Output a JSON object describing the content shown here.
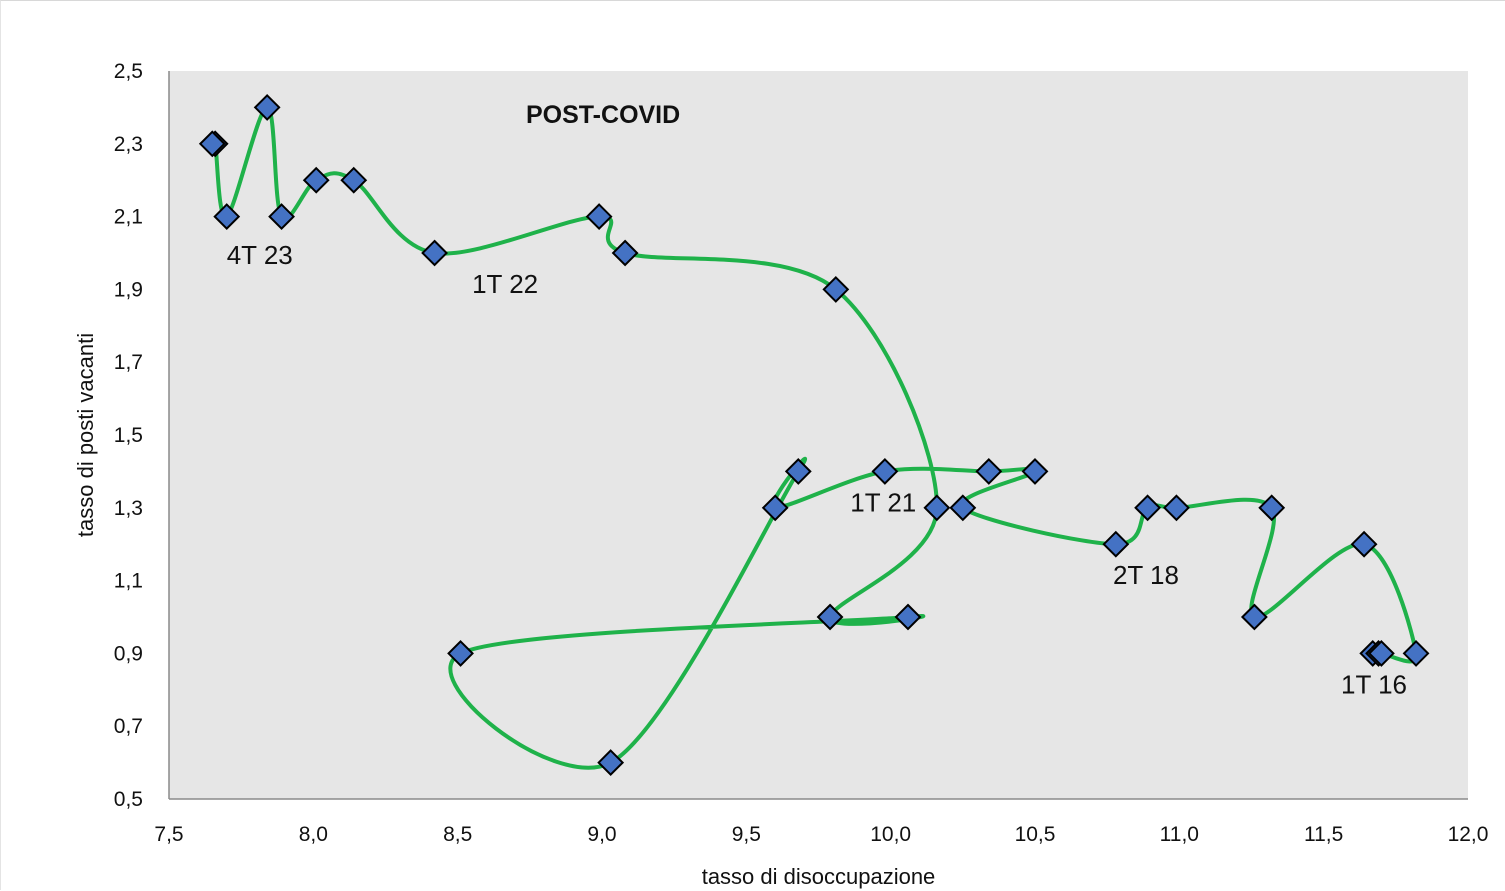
{
  "chart_data": {
    "type": "scatter",
    "title": "POST-COVID",
    "xlabel": "tasso di disoccupazione",
    "ylabel": "tasso di posti vacanti",
    "xlim": [
      7.5,
      12.0
    ],
    "ylim": [
      0.5,
      2.5
    ],
    "xticks": [
      "7,5",
      "8,0",
      "8,5",
      "9,0",
      "9,5",
      "10,0",
      "10,5",
      "11,0",
      "11,5",
      "12,0"
    ],
    "yticks": [
      "0,5",
      "0,7",
      "0,9",
      "1,1",
      "1,3",
      "1,5",
      "1,7",
      "1,9",
      "2,1",
      "2,3",
      "2,5"
    ],
    "grid": false,
    "colors": {
      "plot_background": "#e6e6e6",
      "line": "#1fb24a",
      "marker_fill": "#4472c4",
      "marker_edge": "#000000"
    },
    "series": [
      {
        "points": [
          {
            "x": 11.67,
            "y": 0.9
          },
          {
            "x": 11.69,
            "y": 0.9
          },
          {
            "x": 11.7,
            "y": 0.9
          },
          {
            "x": 11.82,
            "y": 0.9
          },
          {
            "x": 11.64,
            "y": 1.2
          },
          {
            "x": 11.26,
            "y": 1.0
          },
          {
            "x": 11.32,
            "y": 1.3
          },
          {
            "x": 10.99,
            "y": 1.3
          },
          {
            "x": 10.89,
            "y": 1.3
          },
          {
            "x": 10.78,
            "y": 1.2
          },
          {
            "x": 10.25,
            "y": 1.3
          },
          {
            "x": 10.5,
            "y": 1.4
          },
          {
            "x": 10.34,
            "y": 1.4
          },
          {
            "x": 9.98,
            "y": 1.4
          },
          {
            "x": 9.6,
            "y": 1.3
          },
          {
            "x": 9.68,
            "y": 1.4
          },
          {
            "x": 9.03,
            "y": 0.6
          },
          {
            "x": 8.51,
            "y": 0.9
          },
          {
            "x": 10.06,
            "y": 1.0
          },
          {
            "x": 9.79,
            "y": 1.0
          },
          {
            "x": 10.16,
            "y": 1.3
          },
          {
            "x": 9.81,
            "y": 1.9
          },
          {
            "x": 9.08,
            "y": 2.0
          },
          {
            "x": 8.99,
            "y": 2.1
          },
          {
            "x": 8.42,
            "y": 2.0
          },
          {
            "x": 8.14,
            "y": 2.2
          },
          {
            "x": 8.01,
            "y": 2.2
          },
          {
            "x": 7.89,
            "y": 2.1
          },
          {
            "x": 7.84,
            "y": 2.4
          },
          {
            "x": 7.7,
            "y": 2.1
          },
          {
            "x": 7.66,
            "y": 2.3
          },
          {
            "x": 7.65,
            "y": 2.3
          }
        ]
      }
    ],
    "annotations": [
      {
        "text": "1T 16",
        "x": 11.56,
        "y": 0.79
      },
      {
        "text": "2T 18",
        "x": 10.77,
        "y": 1.09
      },
      {
        "text": "1T 21",
        "x": 9.86,
        "y": 1.29
      },
      {
        "text": "1T 22",
        "x": 8.55,
        "y": 1.89
      },
      {
        "text": "4T 23",
        "x": 7.7,
        "y": 1.97
      }
    ]
  }
}
